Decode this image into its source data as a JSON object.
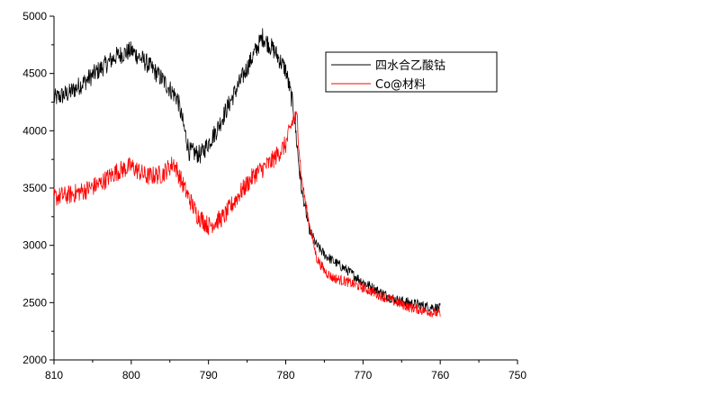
{
  "chart_data": {
    "type": "line",
    "title": "",
    "xlabel": "",
    "ylabel": "",
    "xlim": [
      810,
      750
    ],
    "ylim": [
      2000,
      5000
    ],
    "x_reversed": true,
    "xticks": [
      810,
      800,
      790,
      780,
      770,
      760,
      750
    ],
    "yticks": [
      2000,
      2500,
      3000,
      3500,
      4000,
      4500,
      5000
    ],
    "grid": false,
    "legend_position": "top-right",
    "series": [
      {
        "name": "四水合乙酸钴",
        "color": "#000000",
        "x": [
          810,
          808,
          806,
          804,
          802,
          800,
          798,
          796,
          794,
          792.5,
          791,
          789,
          787,
          785,
          783,
          781.5,
          780,
          779,
          778,
          777,
          776,
          775,
          774,
          772,
          770,
          768,
          766,
          764,
          762,
          760
        ],
        "y": [
          4280,
          4330,
          4430,
          4540,
          4650,
          4700,
          4590,
          4450,
          4280,
          3820,
          3790,
          4000,
          4280,
          4550,
          4820,
          4700,
          4530,
          4200,
          3500,
          3150,
          3000,
          2920,
          2870,
          2780,
          2680,
          2600,
          2530,
          2500,
          2470,
          2450
        ]
      },
      {
        "name": "Co@材料",
        "color": "#ff0000",
        "x": [
          810,
          808,
          806,
          804,
          802,
          800,
          798,
          796,
          794.5,
          793,
          791.5,
          790,
          788,
          786,
          784,
          782,
          780,
          779,
          778.5,
          778,
          777,
          776,
          775,
          774,
          772,
          770,
          768,
          766,
          764,
          762,
          760
        ],
        "y": [
          3420,
          3440,
          3480,
          3540,
          3640,
          3690,
          3600,
          3620,
          3720,
          3480,
          3270,
          3170,
          3250,
          3450,
          3620,
          3720,
          3880,
          4110,
          4100,
          3600,
          3200,
          2890,
          2780,
          2720,
          2680,
          2630,
          2570,
          2510,
          2460,
          2430,
          2400
        ]
      }
    ]
  }
}
